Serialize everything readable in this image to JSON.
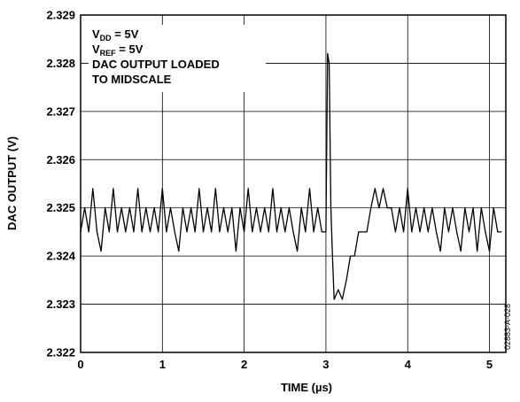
{
  "chart_data": {
    "type": "line",
    "xlabel": "TIME (µs)",
    "ylabel": "DAC OUTPUT (V)",
    "xlim": [
      0,
      5.2
    ],
    "ylim": [
      2.322,
      2.329
    ],
    "grid": true,
    "x_ticks": [
      "0",
      "1",
      "2",
      "3",
      "4",
      "5"
    ],
    "y_ticks": [
      "2.322",
      "2.323",
      "2.324",
      "2.325",
      "2.326",
      "2.327",
      "2.328",
      "2.329"
    ],
    "annotations": {
      "vdd_main": "V",
      "vdd_sub": "DD",
      "vdd_rest": " = 5V",
      "vref_main": "V",
      "vref_sub": "REF",
      "vref_rest": " = 5V",
      "line3": "DAC OUTPUT LOADED",
      "line4": "TO MIDSCALE"
    },
    "figure_id": "02883-A-028",
    "series": [
      {
        "x": [
          0.0,
          0.05,
          0.1,
          0.15,
          0.2,
          0.25,
          0.3,
          0.35,
          0.4,
          0.45,
          0.5,
          0.55,
          0.6,
          0.65,
          0.7,
          0.75,
          0.8,
          0.85,
          0.9,
          0.95,
          1.0,
          1.05,
          1.1,
          1.15,
          1.2,
          1.25,
          1.3,
          1.35,
          1.4,
          1.45,
          1.5,
          1.55,
          1.6,
          1.65,
          1.7,
          1.75,
          1.8,
          1.85,
          1.9,
          1.95,
          2.0,
          2.05,
          2.1,
          2.15,
          2.2,
          2.25,
          2.3,
          2.35,
          2.4,
          2.45,
          2.5,
          2.55,
          2.6,
          2.65,
          2.7,
          2.75,
          2.8,
          2.85,
          2.9,
          2.95,
          3.0,
          3.02,
          3.04,
          3.06,
          3.08,
          3.1,
          3.15,
          3.2,
          3.25,
          3.3,
          3.35,
          3.4,
          3.45,
          3.5,
          3.55,
          3.6,
          3.65,
          3.7,
          3.75,
          3.8,
          3.85,
          3.9,
          3.95,
          4.0,
          4.05,
          4.1,
          4.15,
          4.2,
          4.25,
          4.3,
          4.35,
          4.4,
          4.45,
          4.5,
          4.55,
          4.6,
          4.65,
          4.7,
          4.75,
          4.8,
          4.85,
          4.9,
          4.95,
          5.0,
          5.05,
          5.1,
          5.15
        ],
        "y": [
          2.3245,
          2.325,
          2.3245,
          2.3254,
          2.3245,
          2.3241,
          2.325,
          2.3245,
          2.3254,
          2.3245,
          2.325,
          2.3245,
          2.325,
          2.3245,
          2.3254,
          2.3245,
          2.325,
          2.3245,
          2.325,
          2.3245,
          2.3254,
          2.3245,
          2.325,
          2.3245,
          2.3241,
          2.325,
          2.3245,
          2.325,
          2.3245,
          2.3254,
          2.3245,
          2.325,
          2.3245,
          2.3254,
          2.3245,
          2.325,
          2.3245,
          2.325,
          2.3241,
          2.325,
          2.3245,
          2.3254,
          2.3245,
          2.325,
          2.3245,
          2.325,
          2.3245,
          2.3254,
          2.3245,
          2.325,
          2.3245,
          2.325,
          2.3245,
          2.3241,
          2.325,
          2.3245,
          2.3254,
          2.3245,
          2.325,
          2.3245,
          2.3245,
          2.3282,
          2.328,
          2.325,
          2.324,
          2.3231,
          2.3233,
          2.3231,
          2.3235,
          2.324,
          2.324,
          2.3245,
          2.3245,
          2.3245,
          2.325,
          2.3254,
          2.325,
          2.3254,
          2.325,
          2.325,
          2.3245,
          2.325,
          2.3245,
          2.3254,
          2.3245,
          2.325,
          2.3245,
          2.325,
          2.3245,
          2.325,
          2.3245,
          2.3241,
          2.325,
          2.3245,
          2.325,
          2.3245,
          2.3241,
          2.325,
          2.3245,
          2.325,
          2.3241,
          2.325,
          2.3245,
          2.3241,
          2.325,
          2.3245,
          2.3245
        ]
      }
    ]
  }
}
